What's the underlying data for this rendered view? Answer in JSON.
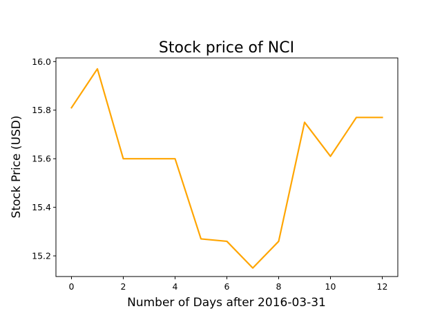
{
  "chart_data": {
    "type": "line",
    "title": "Stock price of NCI",
    "xlabel": "Number of Days after 2016-03-31",
    "ylabel": "Stock Price (USD)",
    "x": [
      0,
      1,
      2,
      3,
      4,
      5,
      6,
      7,
      8,
      9,
      10,
      11,
      12
    ],
    "series": [
      {
        "values": [
          15.81,
          15.97,
          15.6,
          15.6,
          15.6,
          15.27,
          15.26,
          15.15,
          15.26,
          15.75,
          15.61,
          15.77,
          15.77
        ],
        "color": "#FFA500"
      }
    ],
    "xlim": [
      -0.6,
      12.6
    ],
    "ylim": [
      15.115,
      16.015
    ],
    "xticks": [
      0,
      2,
      4,
      6,
      8,
      10,
      12
    ],
    "yticks": [
      15.2,
      15.4,
      15.6,
      15.8,
      16.0
    ],
    "ytick_labels": [
      "15.2",
      "15.4",
      "15.6",
      "15.8",
      "16.0"
    ],
    "grid": false,
    "legend": "none"
  }
}
